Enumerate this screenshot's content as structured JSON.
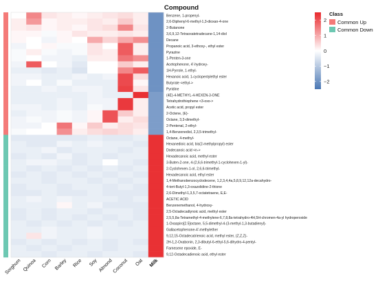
{
  "chart_data": {
    "type": "heatmap",
    "title": "Compound",
    "columns": [
      "Sorghum",
      "Quinoa",
      "Corn",
      "Barley",
      "Rice",
      "Soy",
      "Almond",
      "Coconut",
      "Oat",
      "Milk"
    ],
    "rows": [
      "Benzene, 1-propenyl-",
      "2,6-Diphenyl-6-methyl-1,3-dioxan-4-one",
      "2-Butanone",
      "3,6,9,12-Tetraoxatetradecane-1,14-diol",
      "Decane",
      "Propanoic acid, 3-ethoxy-, ethyl ester",
      "Pyrazine",
      "1-Penten-3-one",
      "Acetophenone, 4'-hydroxy-",
      "1H-Pyrrole, 1-ethyl-",
      "Hexanoic acid, 1-cyclopentylethyl ester",
      "Butyrate <ethyl->",
      "Pyridine",
      "(4E)-4-METHYL-4-HEXEN-3-ONE",
      "Tetrahydrothiophene <3-oxo->",
      "Acetic acid, propyl ester",
      "2-Octene, (E)-",
      "Octane, 3,3-dimethyl-",
      "2-Pentenal, 2-ethyl-",
      "1,4-Benzenediol, 2,3,5-trimethyl-",
      "Octane, 4-methyl-",
      "Hexanedioic acid, bis(2-methylpropyl) ester",
      "Dodecanoic acid <n->",
      "Hexadecanoic acid, methyl ester",
      "3-Buten-2-one, 4-(2,6,6-trimethyl-1-cyclohexen-1-yl)-",
      "2-Cyclohexen-1-ol, 2,6,6-trimethyl-",
      "Hexadecanoic acid, ethyl ester",
      "1,4-Methanobenzocyclodecene, 1,2,3,4,4a,5,8,9,12,12a-decahydro-",
      "4-tert-Butyl-1,3-oxazolidine-2-thione",
      "2,6-Dimethyl-1,3,5,7-octatetraene, E,E-",
      "ACETIC ACID",
      "Benzenemethanol, 4-hydroxy-",
      "2,5-Octadecadiynoic acid, methyl ester",
      "2,5,5,8a-Tetramethyl-4-methylene-6,7,8,8a-tetrahydro-4H,5H-chromen-4a-yl hydroperoxide",
      "1-Oxaspiro[2.5]octane, 5,5-dimethyl-4-(3-methyl-1,3-butadienyl)-",
      "Gallacetophenone-4'-methylether",
      "9,12,15-Octadecatrienoic acid, methyl ester, (Z,Z,Z)-",
      "2H-1,2-Oxabonin, 2,3-dibutyl-6-ethyl-5,6-dihydro-4-pentyl-",
      "Farnesene epoxide, E-",
      "9,12-Octadecadienoic acid, ethyl ester"
    ],
    "row_class": [
      "Common Up",
      "Common Up",
      "Common Up",
      "Common Up",
      "Common Up",
      "Common Up",
      "Common Up",
      "Common Up",
      "Common Up",
      "Common Up",
      "Common Up",
      "Common Up",
      "Common Up",
      "Common Up",
      "Common Up",
      "Common Up",
      "Common Up",
      "Common Up",
      "Common Up",
      "Common Up",
      "Common Down",
      "Common Down",
      "Common Down",
      "Common Down",
      "Common Down",
      "Common Down",
      "Common Down",
      "Common Down",
      "Common Down",
      "Common Down",
      "Common Down",
      "Common Down",
      "Common Down",
      "Common Down",
      "Common Down",
      "Common Down",
      "Common Down",
      "Common Down",
      "Common Down",
      "Common Down"
    ],
    "values": [
      [
        0.0,
        1.4,
        0.3,
        0.2,
        0.1,
        0.2,
        0.3,
        0.4,
        0.2,
        -2.0
      ],
      [
        0.2,
        1.2,
        0.1,
        0.2,
        0.2,
        0.3,
        0.2,
        0.6,
        0.2,
        -2.0
      ],
      [
        0.2,
        0.3,
        0.1,
        0.2,
        0.1,
        0.3,
        0.4,
        1.4,
        0.3,
        -2.0
      ],
      [
        0.1,
        0.1,
        -0.1,
        0.1,
        0.3,
        0.2,
        0.2,
        0.3,
        0.2,
        -2.0
      ],
      [
        0.1,
        0.0,
        -0.2,
        0.1,
        0.0,
        1.0,
        0.5,
        1.0,
        1.3,
        -2.0
      ],
      [
        -0.2,
        0.0,
        0.1,
        -0.1,
        -0.1,
        0.3,
        0.0,
        1.9,
        0.2,
        -2.0
      ],
      [
        -0.1,
        0.2,
        -0.1,
        -0.2,
        -0.1,
        0.3,
        0.2,
        1.9,
        0.2,
        -2.0
      ],
      [
        -0.1,
        0.0,
        -0.2,
        -0.2,
        -0.3,
        0.2,
        0.2,
        1.6,
        1.3,
        -2.0
      ],
      [
        -0.2,
        1.9,
        0.0,
        -0.2,
        -0.4,
        0.0,
        0.0,
        0.6,
        0.2,
        -2.0
      ],
      [
        -0.3,
        -0.3,
        -0.4,
        -0.3,
        -0.5,
        0.0,
        0.0,
        1.4,
        1.9,
        -2.0
      ],
      [
        -0.2,
        -0.2,
        -0.3,
        -0.3,
        -0.2,
        -0.3,
        -0.2,
        2.1,
        0.4,
        -2.0
      ],
      [
        -0.2,
        0.0,
        -0.3,
        -0.1,
        -0.3,
        -0.3,
        -0.3,
        2.1,
        0.1,
        -2.0
      ],
      [
        -0.3,
        -0.3,
        -0.2,
        -0.3,
        -0.2,
        -0.2,
        -0.3,
        2.2,
        0.3,
        -2.0
      ],
      [
        -0.3,
        -0.3,
        -0.3,
        -0.3,
        -0.3,
        -0.2,
        -0.3,
        -0.3,
        2.4,
        -1.8
      ],
      [
        -0.3,
        -0.3,
        -0.3,
        -0.2,
        -0.3,
        -0.2,
        -0.2,
        2.3,
        0.2,
        -1.8
      ],
      [
        -0.2,
        -0.2,
        -0.3,
        -0.2,
        -0.3,
        -0.1,
        -0.2,
        2.3,
        0.2,
        -1.8
      ],
      [
        -0.3,
        -0.2,
        -0.2,
        -0.1,
        -0.2,
        0.1,
        2.0,
        0.6,
        0.2,
        -1.8
      ],
      [
        -0.2,
        -0.1,
        -0.2,
        -0.1,
        -0.2,
        0.1,
        2.0,
        0.2,
        0.4,
        -1.8
      ],
      [
        -0.2,
        -0.2,
        0.0,
        1.6,
        0.1,
        0.6,
        0.2,
        0.4,
        0.3,
        -1.8
      ],
      [
        -0.1,
        0.0,
        0.0,
        1.3,
        0.2,
        0.4,
        0.5,
        0.4,
        0.2,
        -1.8
      ],
      [
        -0.4,
        -0.4,
        -0.4,
        -0.4,
        -0.4,
        -0.3,
        -0.4,
        -0.4,
        -0.3,
        2.4
      ],
      [
        -0.3,
        -0.4,
        -0.4,
        -0.2,
        -0.3,
        -0.2,
        -0.3,
        -0.3,
        -0.4,
        2.4
      ],
      [
        -0.3,
        -0.3,
        -0.2,
        -0.4,
        -0.3,
        -0.3,
        -0.3,
        -0.4,
        -0.3,
        2.4
      ],
      [
        -0.4,
        -0.3,
        -0.4,
        -0.2,
        -0.4,
        -0.3,
        -0.4,
        -0.3,
        -0.3,
        2.4
      ],
      [
        -0.3,
        -0.2,
        -0.2,
        -0.3,
        -0.4,
        -0.3,
        0.0,
        -0.3,
        -0.4,
        2.4
      ],
      [
        -0.3,
        -0.4,
        -0.3,
        -0.4,
        -0.3,
        -0.4,
        -0.3,
        -0.4,
        -0.3,
        2.4
      ],
      [
        -0.4,
        -0.3,
        -0.4,
        -0.3,
        -0.4,
        -0.3,
        -0.4,
        -0.3,
        -0.4,
        2.4
      ],
      [
        -0.3,
        -0.3,
        -0.4,
        -0.3,
        -0.3,
        -0.4,
        -0.3,
        -0.4,
        -0.3,
        2.4
      ],
      [
        -0.4,
        -0.3,
        -0.3,
        -0.4,
        -0.3,
        -0.3,
        -0.4,
        -0.3,
        -0.4,
        2.4
      ],
      [
        -0.4,
        -0.4,
        -0.3,
        -0.4,
        -0.4,
        -0.3,
        -0.4,
        -0.4,
        -0.4,
        2.4
      ],
      [
        -0.3,
        -0.2,
        -0.3,
        -0.2,
        -0.3,
        -0.3,
        -0.3,
        -0.4,
        -0.3,
        2.4
      ],
      [
        -0.3,
        -0.3,
        -0.3,
        0.1,
        -0.3,
        -0.2,
        -0.4,
        -0.4,
        -0.4,
        2.4
      ],
      [
        -0.4,
        -0.3,
        -0.4,
        -0.3,
        -0.3,
        -0.4,
        -0.3,
        -0.3,
        -0.4,
        2.4
      ],
      [
        -0.4,
        -0.3,
        -0.4,
        -0.3,
        -0.4,
        -0.3,
        -0.4,
        -0.3,
        -0.4,
        2.4
      ],
      [
        -0.3,
        -0.4,
        -0.3,
        -0.4,
        -0.3,
        -0.4,
        -0.3,
        -0.4,
        -0.3,
        2.4
      ],
      [
        -0.3,
        -0.3,
        -0.2,
        -0.3,
        -0.3,
        -0.2,
        -0.3,
        -0.3,
        -0.3,
        2.4
      ],
      [
        -0.3,
        0.3,
        -0.2,
        -0.3,
        -0.3,
        -0.2,
        -0.3,
        -0.3,
        -0.3,
        2.4
      ],
      [
        -0.4,
        -0.3,
        -0.4,
        -0.3,
        -0.4,
        -0.3,
        -0.4,
        -0.3,
        -0.4,
        2.4
      ],
      [
        -0.3,
        -0.4,
        -0.3,
        -0.4,
        -0.3,
        -0.3,
        -0.4,
        -0.3,
        -0.3,
        2.4
      ],
      [
        -0.3,
        -0.3,
        -0.4,
        -0.3,
        -0.3,
        -0.4,
        -0.3,
        -0.3,
        -0.4,
        2.4
      ]
    ],
    "color_scale": {
      "min": -2.5,
      "max": 2.5,
      "low": "#4a77b4",
      "mid": "#ffffff",
      "high": "#e8282c",
      "ticks": [
        2,
        1,
        0,
        -1,
        -2
      ]
    },
    "legend": {
      "title": "Class",
      "entries": [
        {
          "label": "Common Up",
          "color": "#f47a78"
        },
        {
          "label": "Common Down",
          "color": "#6dc8b2"
        }
      ]
    }
  }
}
